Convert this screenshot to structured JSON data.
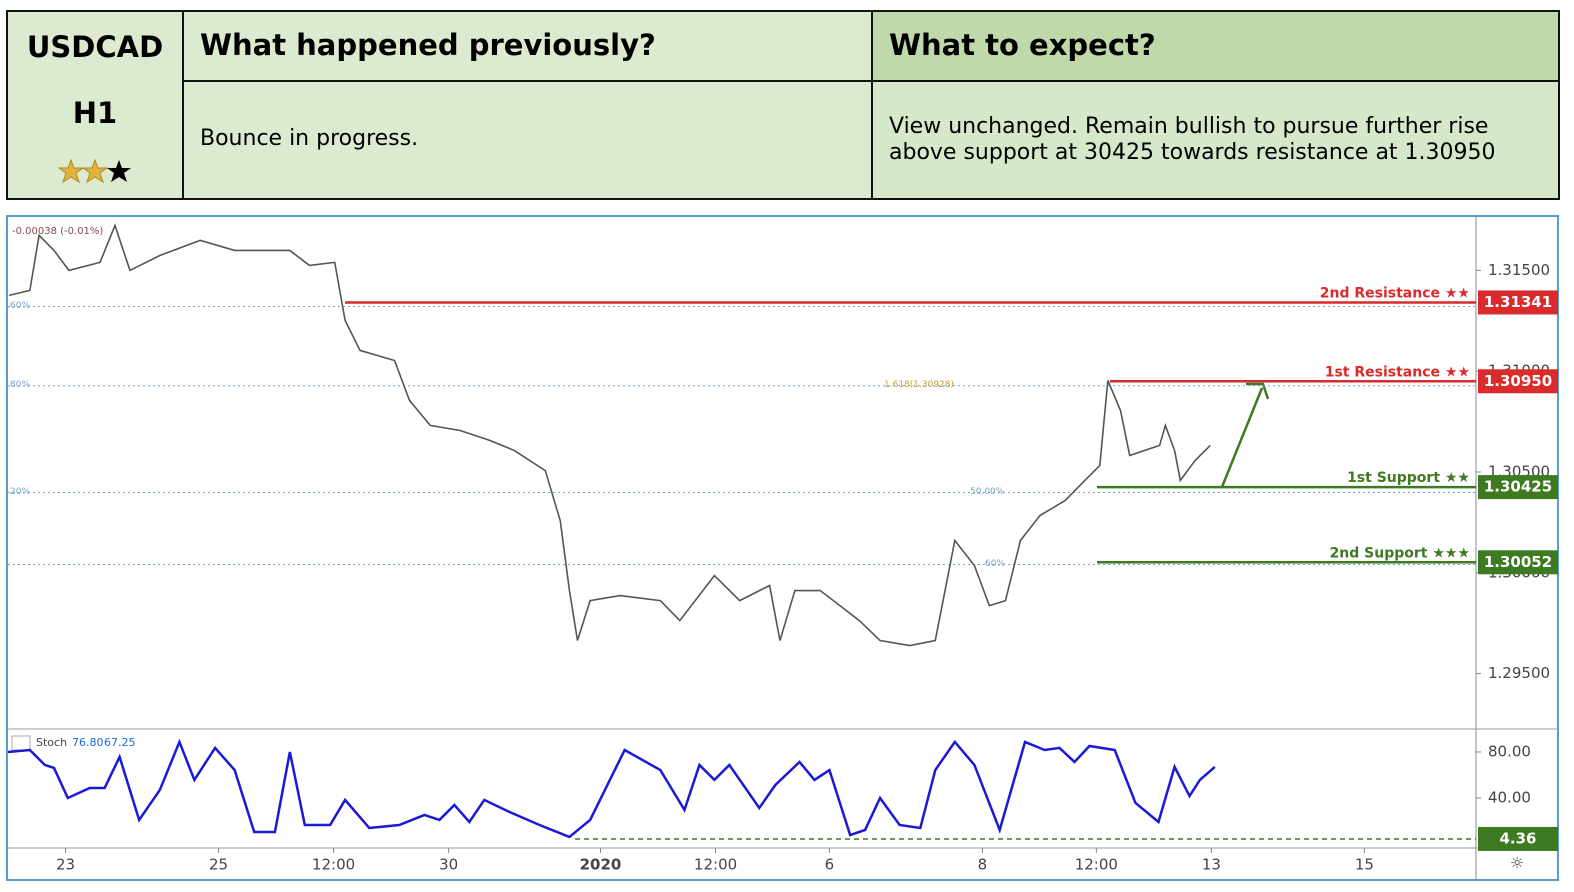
{
  "table": {
    "symbol": "USDCAD",
    "timeframe": "H1",
    "headers": [
      "What happened previously?",
      "What to expect?"
    ],
    "previous": "Bounce in progress.",
    "expect": "View unchanged. Remain bullish to pursue further rise above support at 30425 towards resistance at 1.30950"
  },
  "chart_data": [
    {
      "type": "line",
      "color": "#555555",
      "change_label": "-0.00038 (-0.01%)",
      "x": [
        -0.49,
        -0.31,
        -0.23,
        -0.1,
        0.03,
        0.3,
        0.43,
        0.56,
        0.82,
        1.17,
        1.47,
        1.95,
        2.12,
        2.34,
        2.43,
        2.56,
        2.86,
        2.99,
        3.17,
        3.43,
        3.69,
        3.9,
        4.17,
        4.3,
        4.38,
        4.45,
        4.56,
        4.82,
        5.17,
        5.34,
        5.64,
        5.86,
        6.12,
        6.21,
        6.34,
        6.56,
        6.9,
        7.08,
        7.34,
        7.56,
        7.73,
        7.9,
        8.03,
        8.17,
        8.3,
        8.47,
        8.69,
        8.86,
        8.99,
        9.06,
        9.17,
        9.25,
        9.51,
        9.56,
        9.64,
        9.69,
        9.82,
        9.95
      ],
      "values": [
        1.31376,
        1.31401,
        1.31674,
        1.31599,
        1.315,
        1.3154,
        1.31723,
        1.315,
        1.31574,
        1.31649,
        1.31599,
        1.31599,
        1.31525,
        1.3154,
        1.31252,
        1.31103,
        1.31053,
        1.30855,
        1.30731,
        1.30706,
        1.30656,
        1.30607,
        1.30507,
        1.30259,
        1.29912,
        1.29664,
        1.29862,
        1.29887,
        1.29862,
        1.29763,
        1.29986,
        1.29862,
        1.29937,
        1.29664,
        1.29912,
        1.29912,
        1.29763,
        1.29664,
        1.29639,
        1.29664,
        1.3016,
        1.30036,
        1.29837,
        1.29862,
        1.3016,
        1.30284,
        1.30359,
        1.30458,
        1.30532,
        1.30954,
        1.30805,
        1.30582,
        1.30632,
        1.30731,
        1.30607,
        1.30458,
        1.30558,
        1.30632
      ],
      "xlim": [
        -0.5,
        12.26
      ],
      "ylim": [
        1.2923,
        1.3176
      ],
      "yticks": [
        {
          "value": 1.295,
          "label": "1.29500"
        },
        {
          "value": 1.3,
          "label": "1.30000"
        },
        {
          "value": 1.305,
          "label": "1.30500"
        },
        {
          "value": 1.31,
          "label": "1.31000"
        },
        {
          "value": 1.315,
          "label": "1.31500"
        }
      ],
      "levels": [
        {
          "label": "2nd Resistance ★★",
          "value": 1.31341,
          "color": "#d92b2b"
        },
        {
          "label": "1st Resistance ★★",
          "value": 1.3095,
          "value_label": "1.30950",
          "color": "#d92b2b"
        },
        {
          "label": "1st Support ★★",
          "value": 1.30425,
          "color": "#3e7a22"
        },
        {
          "label": "2nd Support ★★★",
          "value": 1.30052,
          "color": "#3e7a22"
        }
      ],
      "fib": [
        {
          "value": 1.31321,
          "label": "60%"
        },
        {
          "value": 1.30928,
          "label": "80%",
          "note": "1.618(1.30928)"
        },
        {
          "value": 1.30398,
          "label": "20%",
          "note": "50.00%"
        },
        {
          "value": 1.30041,
          "note": "60%"
        }
      ]
    },
    {
      "type": "line",
      "color": "#1a1ad6",
      "legend": "Stoch",
      "readout": {
        "values": [
          76.8,
          67.25
        ],
        "value_labels": [
          "76.80",
          "67.25"
        ]
      },
      "x": [
        -0.5,
        -0.31,
        -0.18,
        -0.1,
        0.02,
        0.21,
        0.34,
        0.47,
        0.64,
        0.82,
        0.99,
        1.12,
        1.3,
        1.47,
        1.64,
        1.82,
        1.95,
        2.08,
        2.3,
        2.43,
        2.64,
        2.9,
        3.12,
        3.25,
        3.38,
        3.51,
        3.64,
        3.86,
        4.12,
        4.38,
        4.56,
        4.86,
        5.17,
        5.38,
        5.51,
        5.64,
        5.77,
        6.03,
        6.17,
        6.38,
        6.51,
        6.64,
        6.82,
        6.95,
        7.08,
        7.25,
        7.43,
        7.56,
        7.73,
        7.9,
        8.12,
        8.34,
        8.51,
        8.64,
        8.77,
        8.9,
        9.12,
        9.3,
        9.5,
        9.64,
        9.77,
        9.86,
        9.99
      ],
      "values": [
        80,
        81.7,
        68.7,
        66.1,
        40,
        48.7,
        48.7,
        75.7,
        20.9,
        47,
        88.7,
        55.7,
        83.5,
        64.3,
        10.4,
        10.4,
        80,
        16.5,
        16.5,
        38.3,
        13.9,
        16.5,
        25.2,
        20.9,
        33.9,
        19.1,
        38.3,
        27.8,
        16.5,
        6.1,
        20.9,
        81.7,
        64.3,
        29.6,
        68.7,
        55.7,
        68.7,
        31.3,
        51.3,
        71.3,
        55.7,
        64.3,
        7.8,
        12.2,
        40,
        16.5,
        13.9,
        64.3,
        88.7,
        68.7,
        12.2,
        88.7,
        81.7,
        83.5,
        71.3,
        85.2,
        81.7,
        35.7,
        19.1,
        67,
        41.7,
        55.7,
        67
      ],
      "xlim": [
        -0.5,
        12.26
      ],
      "ylim": [
        -3.5,
        99.1
      ],
      "yticks": [
        {
          "value": 40,
          "label": "40.00"
        },
        {
          "value": 80,
          "label": "80.00"
        }
      ],
      "levels": [
        {
          "value": 4.36,
          "color": "#3e7a22"
        }
      ],
      "xticks": [
        {
          "value": 0,
          "label": "23"
        },
        {
          "value": 1.33,
          "label": "25"
        },
        {
          "value": 2.33,
          "label": "12:00"
        },
        {
          "value": 3.33,
          "label": "30"
        },
        {
          "value": 4.65,
          "label": "2020"
        },
        {
          "value": 5.65,
          "label": "12:00"
        },
        {
          "value": 6.64,
          "label": "6"
        },
        {
          "value": 7.97,
          "label": "8"
        },
        {
          "value": 8.96,
          "label": "12:00"
        },
        {
          "value": 9.96,
          "label": "13"
        },
        {
          "value": 11.29,
          "label": "15"
        }
      ]
    }
  ]
}
